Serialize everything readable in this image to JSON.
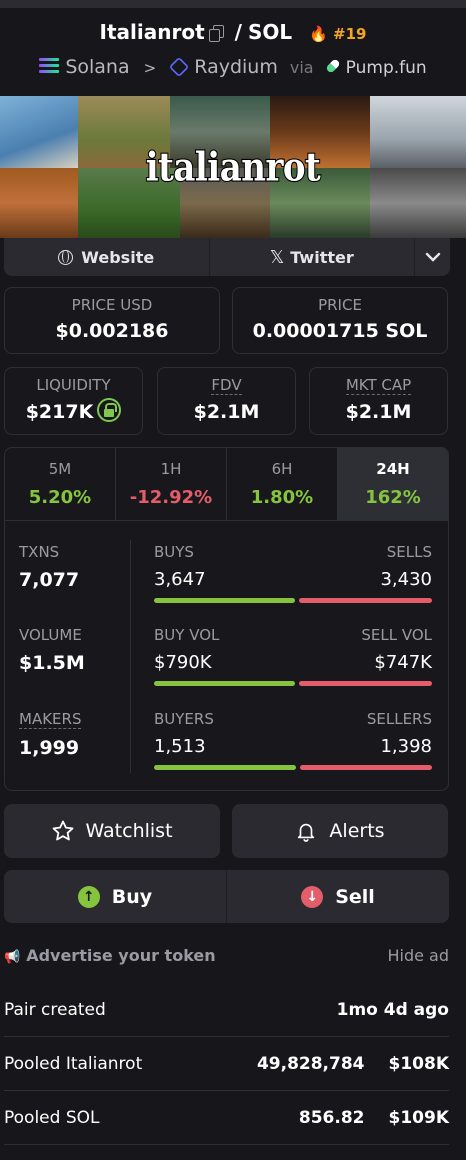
{
  "header": {
    "token": "Italianrot",
    "slash": "/",
    "quote": "SOL",
    "rank": "#19",
    "chain": "Solana",
    "separator": ">",
    "dex": "Raydium",
    "via": "via",
    "launchpad": "Pump.fun"
  },
  "banner": {
    "text": "italianrot"
  },
  "links": {
    "website": "Website",
    "twitter": "Twitter"
  },
  "price": {
    "usd_label": "PRICE USD",
    "usd_value": "$0.002186",
    "native_label": "PRICE",
    "native_value": "0.00001715 SOL"
  },
  "metrics": {
    "liquidity_label": "LIQUIDITY",
    "liquidity_value": "$217K",
    "fdv_label": "FDV",
    "fdv_value": "$2.1M",
    "mktcap_label": "MKT CAP",
    "mktcap_value": "$2.1M"
  },
  "timeframes": [
    {
      "label": "5M",
      "value": "5.20%",
      "direction": "up",
      "active": false
    },
    {
      "label": "1H",
      "value": "-12.92%",
      "direction": "down",
      "active": false
    },
    {
      "label": "6H",
      "value": "1.80%",
      "direction": "up",
      "active": false
    },
    {
      "label": "24H",
      "value": "162%",
      "direction": "up",
      "active": true
    }
  ],
  "stats": {
    "txns": {
      "label": "TXNS",
      "value": "7,077",
      "left_label": "BUYS",
      "left_value": "3,647",
      "right_label": "SELLS",
      "right_value": "3,430",
      "buy_ratio": 0.515
    },
    "volume": {
      "label": "VOLUME",
      "value": "$1.5M",
      "left_label": "BUY VOL",
      "left_value": "$790K",
      "right_label": "SELL VOL",
      "right_value": "$747K",
      "buy_ratio": 0.514
    },
    "makers": {
      "label": "MAKERS",
      "value": "1,999",
      "left_label": "BUYERS",
      "left_value": "1,513",
      "right_label": "SELLERS",
      "right_value": "1,398",
      "buy_ratio": 0.52
    }
  },
  "actions": {
    "watchlist": "Watchlist",
    "alerts": "Alerts",
    "buy": "Buy",
    "sell": "Sell"
  },
  "ad": {
    "advertise": "Advertise your token",
    "hide": "Hide ad"
  },
  "info": {
    "pair_created_label": "Pair created",
    "pair_created_value": "1mo 4d ago",
    "pooled_token_label": "Pooled Italianrot",
    "pooled_token_amount": "49,828,784",
    "pooled_token_usd": "$108K",
    "pooled_sol_label": "Pooled SOL",
    "pooled_sol_amount": "856.82",
    "pooled_sol_usd": "$109K"
  },
  "colors": {
    "up": "#86c440",
    "down": "#e35d6a",
    "accent": "#f5a524"
  }
}
